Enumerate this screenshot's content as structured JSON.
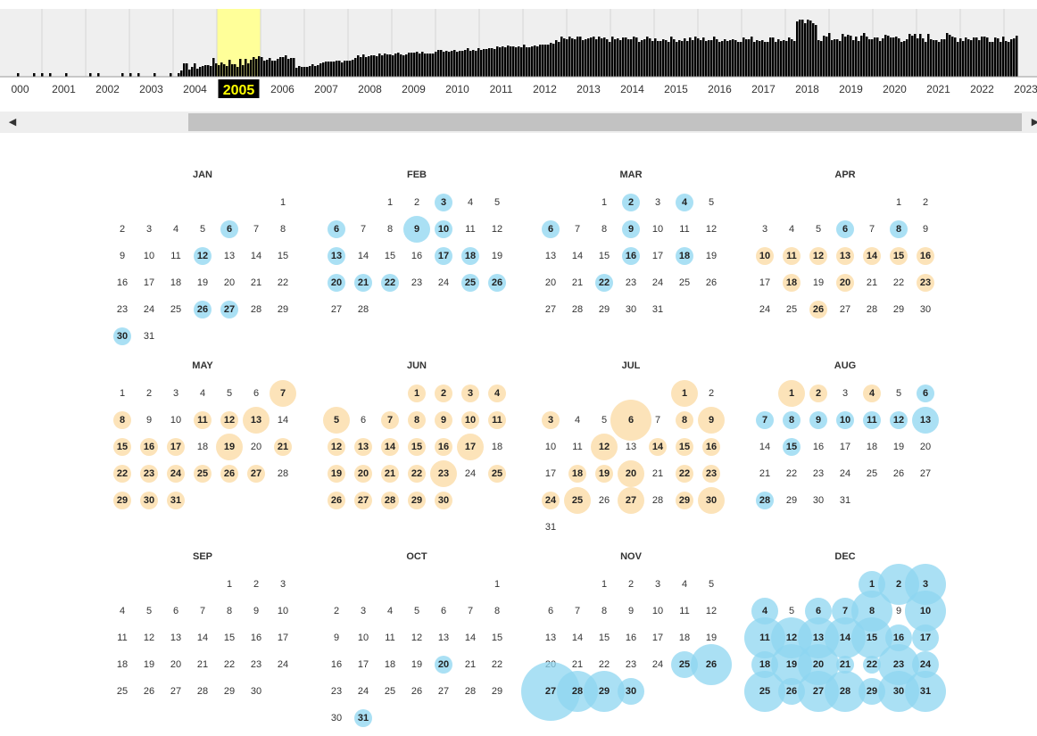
{
  "timeline": {
    "years": [
      "000",
      "2001",
      "2002",
      "2003",
      "2004",
      "2005",
      "2006",
      "2007",
      "2008",
      "2009",
      "2010",
      "2011",
      "2012",
      "2013",
      "2014",
      "2015",
      "2016",
      "2017",
      "2018",
      "2019",
      "2020",
      "2021",
      "2022",
      "2023"
    ],
    "selected_year": "2005",
    "highlight_color": "#ffff99",
    "label_bg_selected": "#000000",
    "label_color_selected": "#ffff00"
  },
  "scrollbar": {
    "left_arrow": "◀",
    "right_arrow": "▶"
  },
  "colors": {
    "blue": "#8dd5f0",
    "orange": "#fbd9a1"
  },
  "calendar": {
    "year": 2005,
    "months": [
      {
        "label": "JAN",
        "first_weekday": 6,
        "days": 31,
        "captures": {
          "6": "b1",
          "12": "b1",
          "26": "b1",
          "27": "b1",
          "30": "b1"
        }
      },
      {
        "label": "FEB",
        "first_weekday": 2,
        "days": 28,
        "captures": {
          "3": "b1",
          "6": "b1",
          "9": "b2",
          "10": "b1",
          "13": "b1",
          "17": "b1",
          "18": "b1",
          "20": "b1",
          "21": "b1",
          "22": "b1",
          "25": "b1",
          "26": "b1"
        }
      },
      {
        "label": "MAR",
        "first_weekday": 2,
        "days": 31,
        "captures": {
          "2": "b1",
          "4": "b1",
          "6": "b1",
          "9": "b1",
          "16": "b1",
          "18": "b1",
          "22": "b1"
        }
      },
      {
        "label": "APR",
        "first_weekday": 5,
        "days": 30,
        "captures": {
          "6": "b1",
          "8": "b1",
          "10": "o1",
          "11": "o1",
          "12": "o1",
          "13": "o1",
          "14": "o1",
          "15": "o1",
          "16": "o1",
          "18": "o1",
          "20": "o1",
          "23": "o1",
          "26": "o1"
        }
      },
      {
        "label": "MAY",
        "first_weekday": 0,
        "days": 31,
        "captures": {
          "7": "o2",
          "8": "o1",
          "11": "o1",
          "12": "o1",
          "13": "o2",
          "15": "o1",
          "16": "o1",
          "17": "o1",
          "19": "o2",
          "21": "o1",
          "22": "o1",
          "23": "o1",
          "24": "o1",
          "25": "o1",
          "26": "o1",
          "27": "o1",
          "29": "o1",
          "30": "o1",
          "31": "o1"
        }
      },
      {
        "label": "JUN",
        "first_weekday": 3,
        "days": 30,
        "captures": {
          "1": "o1",
          "2": "o1",
          "3": "o1",
          "4": "o1",
          "5": "o2",
          "7": "o1",
          "8": "o1",
          "9": "o1",
          "10": "o1",
          "11": "o1",
          "12": "o1",
          "13": "o1",
          "14": "o1",
          "15": "o1",
          "16": "o1",
          "17": "o2",
          "19": "o1",
          "20": "o1",
          "21": "o1",
          "22": "o1",
          "23": "o2",
          "25": "o1",
          "26": "o1",
          "27": "o1",
          "28": "o1",
          "29": "o1",
          "30": "o1"
        }
      },
      {
        "label": "JUL",
        "first_weekday": 5,
        "days": 31,
        "captures": {
          "1": "o2",
          "3": "o1",
          "6": "o3",
          "8": "o1",
          "9": "o2",
          "12": "o2",
          "14": "o1",
          "15": "o1",
          "16": "o1",
          "18": "o1",
          "19": "o1",
          "20": "o2",
          "22": "o1",
          "23": "o1",
          "24": "o1",
          "25": "o2",
          "27": "o2",
          "29": "o1",
          "30": "o2"
        }
      },
      {
        "label": "AUG",
        "first_weekday": 1,
        "days": 31,
        "captures": {
          "1": "o2",
          "2": "o1",
          "4": "o1",
          "6": "b1",
          "7": "b1",
          "8": "b1",
          "9": "b1",
          "10": "b1",
          "11": "b1",
          "12": "b1",
          "13": "b2",
          "15": "b1",
          "28": "b1"
        }
      },
      {
        "label": "SEP",
        "first_weekday": 4,
        "days": 30,
        "captures": {}
      },
      {
        "label": "OCT",
        "first_weekday": 6,
        "days": 31,
        "captures": {
          "20": "b1",
          "31": "b1"
        }
      },
      {
        "label": "NOV",
        "first_weekday": 2,
        "days": 30,
        "captures": {
          "25": "b2",
          "26": "b3",
          "27": "b4",
          "28": "b3",
          "29": "b3",
          "30": "b2"
        }
      },
      {
        "label": "DEC",
        "first_weekday": 4,
        "days": 31,
        "captures": {
          "1": "b2",
          "2": "b3",
          "3": "b3",
          "4": "b2",
          "6": "b2",
          "7": "b2",
          "8": "b3",
          "10": "b3",
          "11": "b3",
          "12": "b3",
          "13": "b3",
          "14": "b3",
          "15": "b3",
          "16": "b2",
          "17": "b2",
          "18": "b2",
          "19": "b3",
          "20": "b3",
          "21": "b1",
          "22": "b1",
          "23": "b3",
          "24": "b2",
          "25": "b3",
          "26": "b2",
          "27": "b3",
          "28": "b3",
          "29": "b2",
          "30": "b3",
          "31": "b3"
        }
      }
    ]
  }
}
